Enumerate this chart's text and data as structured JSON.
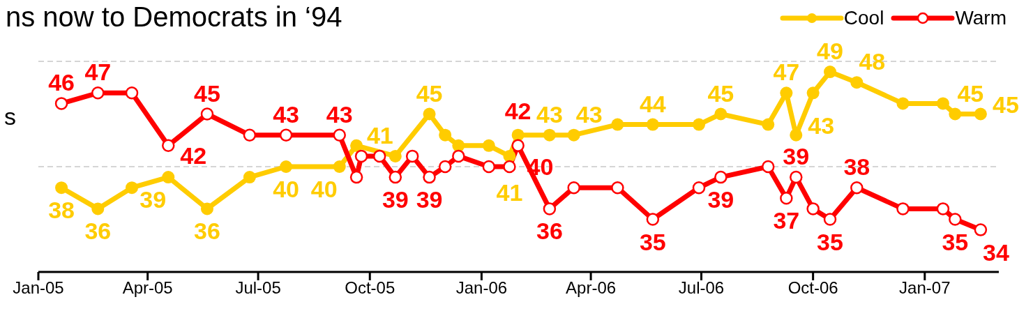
{
  "chart_data": {
    "type": "line",
    "title": "ns now to Democrats in ‘94",
    "annotations": [
      "s"
    ],
    "x": [
      "2005-01-20",
      "2005-02-19",
      "2005-03-19",
      "2005-04-18",
      "2005-05-20",
      "2005-06-24",
      "2005-07-24",
      "2005-09-06",
      "2005-09-20",
      "2005-09-24",
      "2005-10-09",
      "2005-10-22",
      "2005-11-05",
      "2005-11-19",
      "2005-12-02",
      "2005-12-13",
      "2006-01-07",
      "2006-01-24",
      "2006-01-31",
      "2006-02-26",
      "2006-03-18",
      "2006-04-23",
      "2006-05-22",
      "2006-06-29",
      "2006-07-17",
      "2006-08-25",
      "2006-09-09",
      "2006-09-17",
      "2006-10-01",
      "2006-10-15",
      "2006-11-06",
      "2006-12-14",
      "2007-01-16",
      "2007-01-26",
      "2007-02-16"
    ],
    "series": [
      {
        "name": "Cool",
        "color": "#ffcc00",
        "values": [
          38,
          36,
          38,
          39,
          36,
          39,
          40,
          40,
          42,
          null,
          null,
          41,
          null,
          45,
          43,
          42,
          42,
          41,
          43,
          43,
          43,
          44,
          44,
          44,
          45,
          44,
          47,
          43,
          47,
          49,
          48,
          46,
          46,
          45,
          45
        ],
        "value_labels": [
          "38",
          "36",
          null,
          "39",
          "36",
          null,
          "40",
          "40",
          null,
          null,
          null,
          "41",
          null,
          "45",
          null,
          null,
          null,
          "41",
          null,
          "43",
          "43",
          null,
          "44",
          null,
          "45",
          null,
          "47",
          "43",
          null,
          "49",
          "48",
          null,
          null,
          "45",
          "45"
        ]
      },
      {
        "name": "Warm",
        "color": "#ff0000",
        "values": [
          46,
          47,
          47,
          42,
          45,
          43,
          43,
          43,
          39,
          41,
          41,
          39,
          41,
          39,
          40,
          41,
          40,
          40,
          42,
          36,
          38,
          38,
          35,
          38,
          39,
          40,
          37,
          39,
          36,
          35,
          38,
          36,
          36,
          35,
          34
        ],
        "value_labels": [
          "46",
          "47",
          null,
          "42",
          "45",
          null,
          "43",
          "43",
          null,
          null,
          null,
          "39",
          null,
          "39",
          null,
          null,
          null,
          "40",
          "42",
          "36",
          null,
          null,
          "35",
          null,
          "39",
          null,
          "37",
          "39",
          null,
          "35",
          "38",
          null,
          null,
          "35",
          "34"
        ]
      }
    ],
    "xlim": [
      "2005-01-01",
      "2007-03-03"
    ],
    "xticks": [
      {
        "value": "2005-01-01",
        "label": "Jan-05"
      },
      {
        "value": "2005-04-01",
        "label": "Apr-05"
      },
      {
        "value": "2005-07-01",
        "label": "Jul-05"
      },
      {
        "value": "2005-10-01",
        "label": "Oct-05"
      },
      {
        "value": "2006-01-01",
        "label": "Jan-06"
      },
      {
        "value": "2006-04-01",
        "label": "Apr-06"
      },
      {
        "value": "2006-07-01",
        "label": "Jul-06"
      },
      {
        "value": "2006-10-01",
        "label": "Oct-06"
      },
      {
        "value": "2007-01-01",
        "label": "Jan-07"
      }
    ],
    "ylim": [
      30,
      50
    ],
    "ref_lines": [
      {
        "axis": "y",
        "value": 40,
        "color": "#c8c8c8",
        "line_style": "dashed"
      },
      {
        "axis": "y",
        "value": 50,
        "color": "#c8c8c8",
        "line_style": "dashed"
      }
    ],
    "tick_labels": "x",
    "legend": "top right",
    "marker": "circle",
    "line_style": "solid"
  }
}
